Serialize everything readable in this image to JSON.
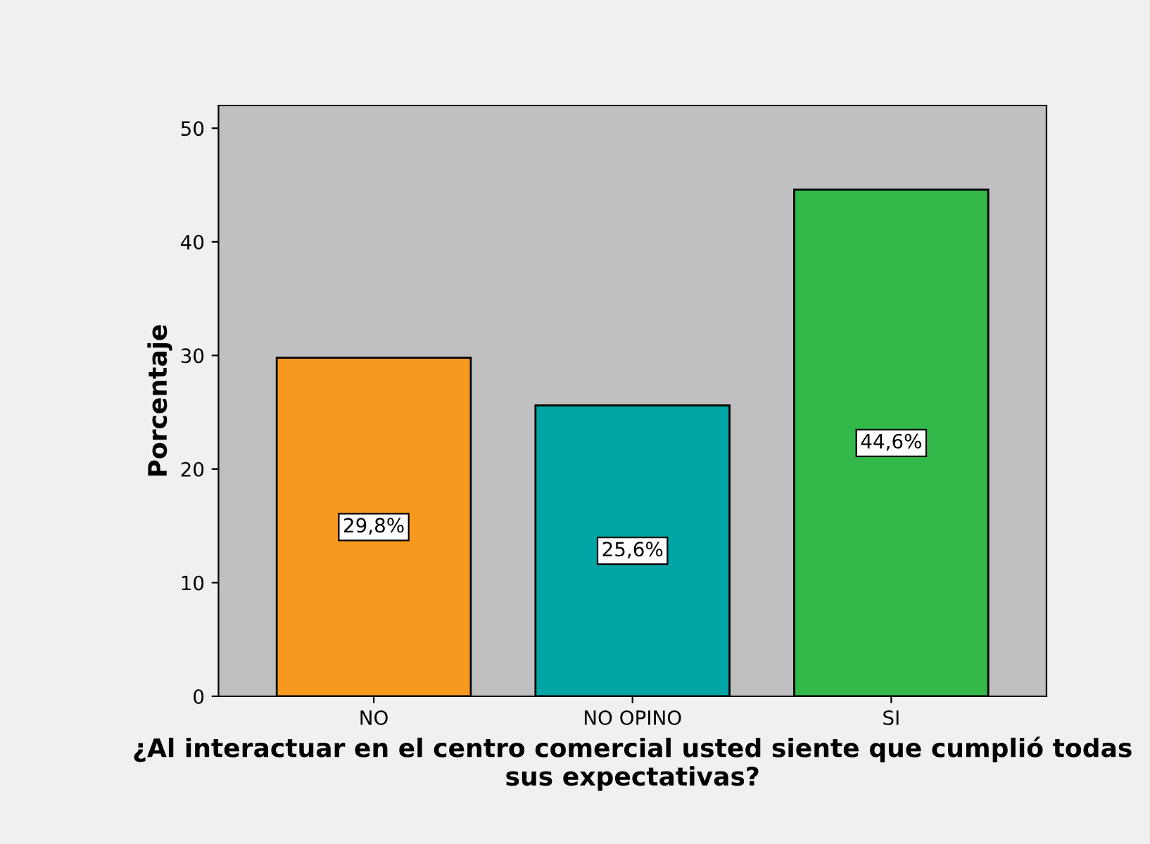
{
  "chart_data": {
    "type": "bar",
    "categories": [
      "NO",
      "NO OPINO",
      "SI"
    ],
    "values": [
      29.8,
      25.6,
      44.6
    ],
    "colors": [
      "#f7991f",
      "#00a6a6",
      "#33b94a"
    ],
    "value_labels": [
      "29,8%",
      "25,6%",
      "44,6%"
    ],
    "ylabel": "Porcentaje",
    "xlabel": "¿Al interactuar en el centro comercial usted siente que cumplió todas sus expectativas?",
    "ylim": [
      0,
      52
    ],
    "yticks": [
      0,
      10,
      20,
      30,
      40,
      50
    ],
    "grid": false,
    "legend": false
  }
}
